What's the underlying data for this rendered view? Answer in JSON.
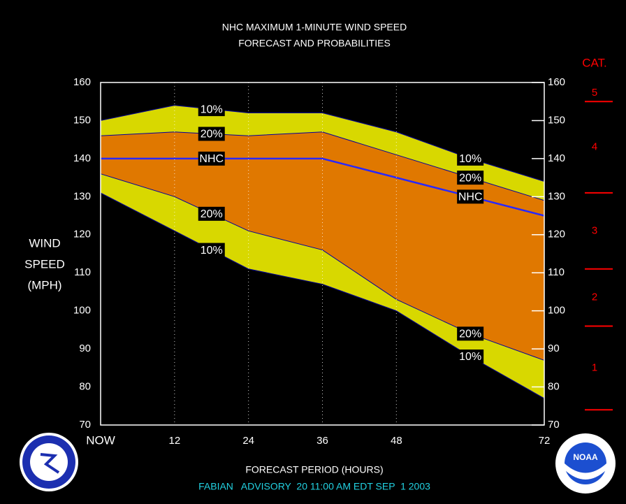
{
  "chart_data": {
    "type": "band",
    "title": [
      "NHC MAXIMUM 1-MINUTE WIND SPEED",
      "FORECAST AND PROBABILITIES"
    ],
    "y_label": [
      "WIND",
      "SPEED",
      "(MPH)"
    ],
    "x_label": "FORECAST PERIOD (HOURS)",
    "footer": "FABIAN   ADVISORY  20 11:00 AM EDT SEP  1 2003",
    "x": [
      0,
      12,
      24,
      36,
      48,
      60,
      72
    ],
    "xlim": [
      0,
      72
    ],
    "xticks": [
      {
        "value": 0,
        "label": "NOW"
      },
      12,
      24,
      36,
      48,
      72
    ],
    "ylim": [
      70,
      160
    ],
    "yticks": [
      70,
      80,
      90,
      100,
      110,
      120,
      130,
      140,
      150,
      160
    ],
    "grid": true,
    "bands": [
      {
        "name": "10%",
        "color": "#d8d800",
        "upper": [
          150,
          154,
          152,
          152,
          147,
          140,
          134
        ],
        "lower": [
          131,
          121,
          111,
          107,
          100,
          88,
          77
        ]
      },
      {
        "name": "20%",
        "color": "#e07800",
        "upper": [
          146,
          147,
          146,
          147,
          141,
          135,
          129
        ],
        "lower": [
          136,
          130,
          121,
          116,
          103,
          94,
          87
        ]
      }
    ],
    "series": [
      {
        "name": "NHC",
        "color": "#2828ff",
        "values": [
          140,
          140,
          140,
          140,
          135,
          130,
          125
        ]
      }
    ],
    "category_scale": {
      "title": "CAT.",
      "labels": [
        "1",
        "2",
        "3",
        "4",
        "5"
      ],
      "thresholds": [
        74,
        96,
        111,
        131,
        155
      ],
      "color": "#ff0000"
    }
  },
  "logos": {
    "right": "NOAA"
  }
}
